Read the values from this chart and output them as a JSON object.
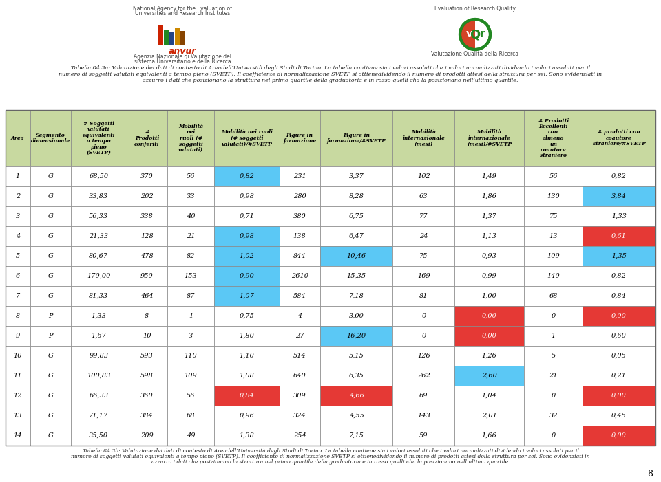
{
  "header_bg": "#c8d9a0",
  "white_bg": "#ffffff",
  "blue_cell": "#5bc8f5",
  "red_cell": "#e53935",
  "caption_top_lines": [
    "Tabella 84.3a: Valutazione dei dati di contesto di Areadell’Università degli Studi di Torino. La tabella contiene sia i valori assoluti che i valori normalizzati dividendo i valori assoluti per il",
    "numero di soggetti valutati equivalenti a tempo pieno (SVETP). Il coefficiente di normalizzazione SVETP si ottienedividendo il numero di prodotti attesi della struttura per sei. Sono evidenziati in",
    "azzurro i dati che posizionano la struttura nel primo quartile della graduatoria e in rosso quelli cha la posizionano nell’ultimo quartile."
  ],
  "caption_bottom_lines": [
    "Tabella 84.3b: Valutazione dei dati di contesto di Areadell’Università degli Studi di Torino. La tabella contiene sia i valori assoluti che i valori normalizzati dividendo i valori assoluti per il numero di soggetti valutati equivalenti a tempo pieno (SVETP). Il coefficiente di normalizzazione SVETP si ottienedividendo il numero di prodotti attesi della struttura per sei. Sono evidenziati in",
    "azzurro i dati che posizionano la struttura nel primo quartile della graduatoria e in rosso quelli cha la posizionano nell’ultimo quartile."
  ],
  "col_headers": [
    "Area",
    "Segmento\ndimensionale",
    "# Soggetti\nvalutati\nequivalenti\na tempo\npieno\n(SVETP)",
    "#\nProdotti\nconferiti",
    "Mobilità\nnei\nruoli (#\nsoggetti\nvalutati)",
    "Mobilità nei ruoli\n(# soggetti\nvalutati)/#SVETP",
    "Figure in\nformazione",
    "Figure in\nformazione/#SVETP",
    "Mobilità\ninternazionale\n(mesi)",
    "Mobilità\ninternazionale\n(mesi)/#SVETP",
    "# Prodotti\nEccellenti\ncon\nalmeno\nun\ncoautore\nstraniero",
    "# prodotti con\ncoautore\nstraniero/#SVETP"
  ],
  "rows": [
    {
      "area": "1",
      "seg": "G",
      "svetp": "68,50",
      "prod": "370",
      "mob_ruoli": "56",
      "mob_ruoli_n": "0,82",
      "fig_form": "231",
      "fig_form_n": "3,37",
      "mob_int": "102",
      "mob_int_n": "1,49",
      "prod_ecc": "56",
      "prod_ecc_n": "0,82",
      "mob_ruoli_n_color": "blue",
      "fig_form_n_color": null,
      "mob_int_n_color": null,
      "prod_ecc_n_color": null
    },
    {
      "area": "2",
      "seg": "G",
      "svetp": "33,83",
      "prod": "202",
      "mob_ruoli": "33",
      "mob_ruoli_n": "0,98",
      "fig_form": "280",
      "fig_form_n": "8,28",
      "mob_int": "63",
      "mob_int_n": "1,86",
      "prod_ecc": "130",
      "prod_ecc_n": "3,84",
      "mob_ruoli_n_color": null,
      "fig_form_n_color": null,
      "mob_int_n_color": null,
      "prod_ecc_n_color": "blue"
    },
    {
      "area": "3",
      "seg": "G",
      "svetp": "56,33",
      "prod": "338",
      "mob_ruoli": "40",
      "mob_ruoli_n": "0,71",
      "fig_form": "380",
      "fig_form_n": "6,75",
      "mob_int": "77",
      "mob_int_n": "1,37",
      "prod_ecc": "75",
      "prod_ecc_n": "1,33",
      "mob_ruoli_n_color": null,
      "fig_form_n_color": null,
      "mob_int_n_color": null,
      "prod_ecc_n_color": null
    },
    {
      "area": "4",
      "seg": "G",
      "svetp": "21,33",
      "prod": "128",
      "mob_ruoli": "21",
      "mob_ruoli_n": "0,98",
      "fig_form": "138",
      "fig_form_n": "6,47",
      "mob_int": "24",
      "mob_int_n": "1,13",
      "prod_ecc": "13",
      "prod_ecc_n": "0,61",
      "mob_ruoli_n_color": "blue",
      "fig_form_n_color": null,
      "mob_int_n_color": null,
      "prod_ecc_n_color": "red"
    },
    {
      "area": "5",
      "seg": "G",
      "svetp": "80,67",
      "prod": "478",
      "mob_ruoli": "82",
      "mob_ruoli_n": "1,02",
      "fig_form": "844",
      "fig_form_n": "10,46",
      "mob_int": "75",
      "mob_int_n": "0,93",
      "prod_ecc": "109",
      "prod_ecc_n": "1,35",
      "mob_ruoli_n_color": "blue",
      "fig_form_n_color": "blue",
      "mob_int_n_color": null,
      "prod_ecc_n_color": "blue"
    },
    {
      "area": "6",
      "seg": "G",
      "svetp": "170,00",
      "prod": "950",
      "mob_ruoli": "153",
      "mob_ruoli_n": "0,90",
      "fig_form": "2610",
      "fig_form_n": "15,35",
      "mob_int": "169",
      "mob_int_n": "0,99",
      "prod_ecc": "140",
      "prod_ecc_n": "0,82",
      "mob_ruoli_n_color": "blue",
      "fig_form_n_color": null,
      "mob_int_n_color": null,
      "prod_ecc_n_color": null
    },
    {
      "area": "7",
      "seg": "G",
      "svetp": "81,33",
      "prod": "464",
      "mob_ruoli": "87",
      "mob_ruoli_n": "1,07",
      "fig_form": "584",
      "fig_form_n": "7,18",
      "mob_int": "81",
      "mob_int_n": "1,00",
      "prod_ecc": "68",
      "prod_ecc_n": "0,84",
      "mob_ruoli_n_color": "blue",
      "fig_form_n_color": null,
      "mob_int_n_color": null,
      "prod_ecc_n_color": null
    },
    {
      "area": "8",
      "seg": "P",
      "svetp": "1,33",
      "prod": "8",
      "mob_ruoli": "1",
      "mob_ruoli_n": "0,75",
      "fig_form": "4",
      "fig_form_n": "3,00",
      "mob_int": "0",
      "mob_int_n": "0,00",
      "prod_ecc": "0",
      "prod_ecc_n": "0,00",
      "mob_ruoli_n_color": null,
      "fig_form_n_color": null,
      "mob_int_n_color": "red",
      "prod_ecc_n_color": "red"
    },
    {
      "area": "9",
      "seg": "P",
      "svetp": "1,67",
      "prod": "10",
      "mob_ruoli": "3",
      "mob_ruoli_n": "1,80",
      "fig_form": "27",
      "fig_form_n": "16,20",
      "mob_int": "0",
      "mob_int_n": "0,00",
      "prod_ecc": "1",
      "prod_ecc_n": "0,60",
      "mob_ruoli_n_color": null,
      "fig_form_n_color": "blue",
      "mob_int_n_color": "red",
      "prod_ecc_n_color": null
    },
    {
      "area": "10",
      "seg": "G",
      "svetp": "99,83",
      "prod": "593",
      "mob_ruoli": "110",
      "mob_ruoli_n": "1,10",
      "fig_form": "514",
      "fig_form_n": "5,15",
      "mob_int": "126",
      "mob_int_n": "1,26",
      "prod_ecc": "5",
      "prod_ecc_n": "0,05",
      "mob_ruoli_n_color": null,
      "fig_form_n_color": null,
      "mob_int_n_color": null,
      "prod_ecc_n_color": null
    },
    {
      "area": "11",
      "seg": "G",
      "svetp": "100,83",
      "prod": "598",
      "mob_ruoli": "109",
      "mob_ruoli_n": "1,08",
      "fig_form": "640",
      "fig_form_n": "6,35",
      "mob_int": "262",
      "mob_int_n": "2,60",
      "prod_ecc": "21",
      "prod_ecc_n": "0,21",
      "mob_ruoli_n_color": null,
      "fig_form_n_color": null,
      "mob_int_n_color": "blue",
      "prod_ecc_n_color": null
    },
    {
      "area": "12",
      "seg": "G",
      "svetp": "66,33",
      "prod": "360",
      "mob_ruoli": "56",
      "mob_ruoli_n": "0,84",
      "fig_form": "309",
      "fig_form_n": "4,66",
      "mob_int": "69",
      "mob_int_n": "1,04",
      "prod_ecc": "0",
      "prod_ecc_n": "0,00",
      "mob_ruoli_n_color": "red",
      "fig_form_n_color": "red",
      "mob_int_n_color": null,
      "prod_ecc_n_color": "red"
    },
    {
      "area": "13",
      "seg": "G",
      "svetp": "71,17",
      "prod": "384",
      "mob_ruoli": "68",
      "mob_ruoli_n": "0,96",
      "fig_form": "324",
      "fig_form_n": "4,55",
      "mob_int": "143",
      "mob_int_n": "2,01",
      "prod_ecc": "32",
      "prod_ecc_n": "0,45",
      "mob_ruoli_n_color": null,
      "fig_form_n_color": null,
      "mob_int_n_color": null,
      "prod_ecc_n_color": null
    },
    {
      "area": "14",
      "seg": "G",
      "svetp": "35,50",
      "prod": "209",
      "mob_ruoli": "49",
      "mob_ruoli_n": "1,38",
      "fig_form": "254",
      "fig_form_n": "7,15",
      "mob_int": "59",
      "mob_int_n": "1,66",
      "prod_ecc": "0",
      "prod_ecc_n": "0,00",
      "mob_ruoli_n_color": null,
      "fig_form_n_color": null,
      "mob_int_n_color": null,
      "prod_ecc_n_color": "red"
    }
  ],
  "page_number": "8",
  "anvur_left_line1": "National Agency for the Evaluation of",
  "anvur_left_line2": "Universities and Research Institutes",
  "anvur_left_line3": "Agenzia Nazionale di Valutazione del",
  "anvur_left_line4": "sistema Universitario e della Ricerca",
  "vqr_line1": "Evaluation of Research Quality",
  "vqr_line2": "Valutazione Qualità della Ricerca"
}
